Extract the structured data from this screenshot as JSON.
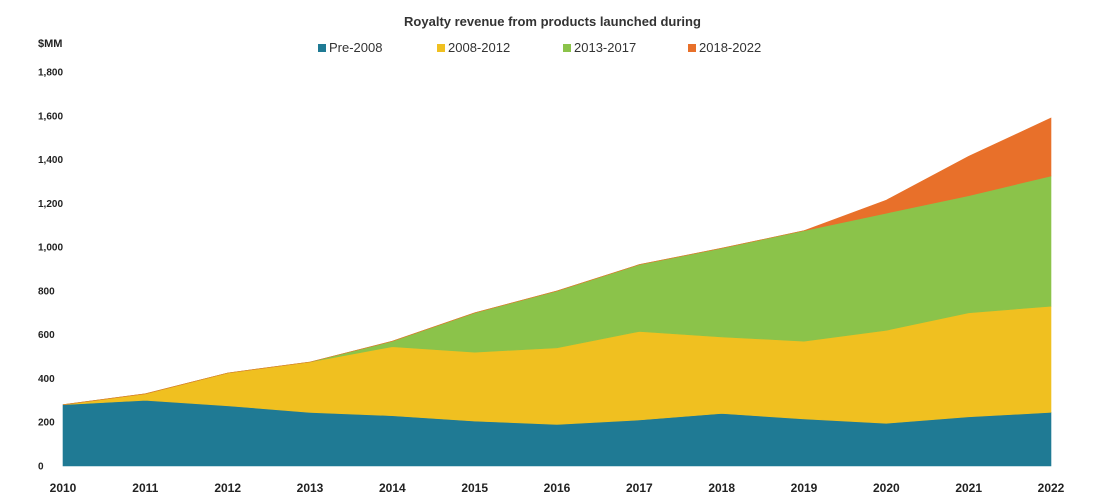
{
  "chart_data": {
    "type": "area",
    "stacked": true,
    "title": "Royalty revenue from products launched during",
    "ylabel": "$MM",
    "xlabel": "",
    "ylim": [
      0,
      1800
    ],
    "yticks": [
      0,
      200,
      400,
      600,
      800,
      1000,
      1200,
      1400,
      1600,
      1800
    ],
    "ytick_labels": [
      "0",
      "200",
      "400",
      "600",
      "800",
      "1,000",
      "1,200",
      "1,400",
      "1,600",
      "1,800"
    ],
    "grid": false,
    "legend_position": "top-center",
    "x": [
      "2010",
      "2011",
      "2012",
      "2013",
      "2014",
      "2015",
      "2016",
      "2017",
      "2018",
      "2019",
      "2020",
      "2021",
      "2022"
    ],
    "series": [
      {
        "name": "Pre-2008",
        "color": "#1f7a94",
        "values": [
          280,
          300,
          275,
          245,
          230,
          205,
          190,
          210,
          240,
          215,
          195,
          225,
          245
        ]
      },
      {
        "name": "2008-2012",
        "color": "#f0c020",
        "values": [
          0,
          30,
          150,
          230,
          315,
          315,
          350,
          405,
          350,
          355,
          425,
          475,
          485
        ]
      },
      {
        "name": "2013-2017",
        "color": "#8bc34a",
        "values": [
          0,
          0,
          0,
          0,
          25,
          180,
          260,
          305,
          405,
          505,
          535,
          535,
          595
        ]
      },
      {
        "name": "2018-2022",
        "color": "#e8702a",
        "values": [
          0,
          0,
          0,
          0,
          0,
          0,
          0,
          0,
          0,
          0,
          60,
          180,
          265
        ]
      }
    ]
  }
}
